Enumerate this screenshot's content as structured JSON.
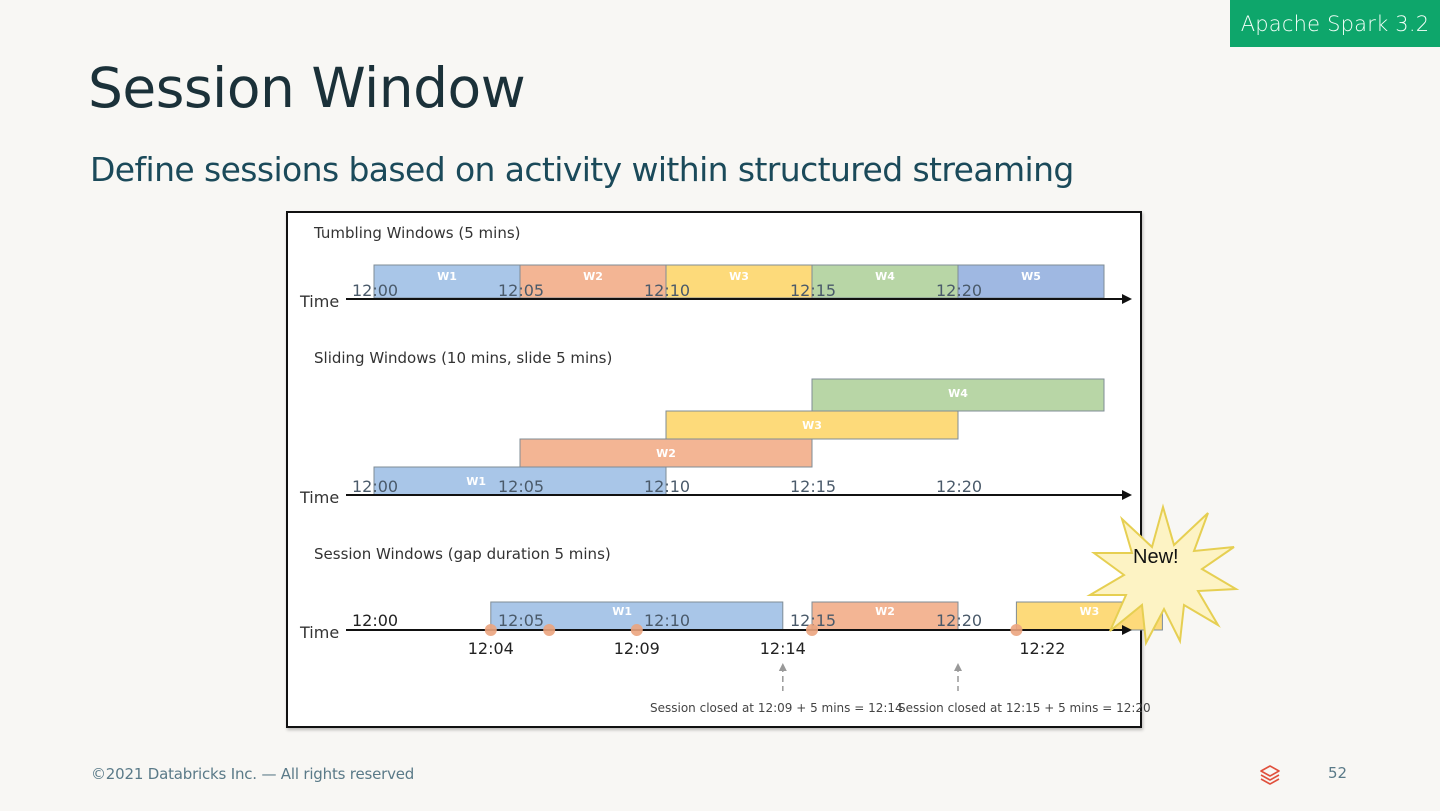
{
  "badge": {
    "label": "Apache Spark 3.2",
    "color": "#0ea66b"
  },
  "page": {
    "title": "Session Window",
    "subtitle": "Define sessions based on activity within structured streaming"
  },
  "diagram": {
    "colors": {
      "blue": "#a9c6e8",
      "orange": "#f3b594",
      "yellow": "#fdda7a",
      "green": "#b8d6a6",
      "blue2": "#9fb8e2",
      "event_dot": "#eba47e"
    },
    "axis_label": "Time",
    "tumbling": {
      "heading": "Tumbling Windows (5 mins)",
      "ticks": [
        "12:00",
        "12:05",
        "12:10",
        "12:15",
        "12:20"
      ],
      "windows": [
        {
          "label": "W1",
          "start_min": 0,
          "end_min": 5,
          "color": "blue"
        },
        {
          "label": "W2",
          "start_min": 5,
          "end_min": 10,
          "color": "orange"
        },
        {
          "label": "W3",
          "start_min": 10,
          "end_min": 15,
          "color": "yellow"
        },
        {
          "label": "W4",
          "start_min": 15,
          "end_min": 20,
          "color": "green"
        },
        {
          "label": "W5",
          "start_min": 20,
          "end_min": 25,
          "color": "blue2"
        }
      ]
    },
    "sliding": {
      "heading": "Sliding Windows (10 mins, slide 5 mins)",
      "ticks": [
        "12:00",
        "12:05",
        "12:10",
        "12:15",
        "12:20"
      ],
      "windows": [
        {
          "label": "W1",
          "start_min": 0,
          "end_min": 10,
          "color": "blue"
        },
        {
          "label": "W2",
          "start_min": 5,
          "end_min": 15,
          "color": "orange"
        },
        {
          "label": "W3",
          "start_min": 10,
          "end_min": 20,
          "color": "yellow"
        },
        {
          "label": "W4",
          "start_min": 15,
          "end_min": 25,
          "color": "green"
        }
      ]
    },
    "session": {
      "heading": "Session Windows (gap duration 5 mins)",
      "ticks": [
        "12:00",
        "12:05",
        "12:10",
        "12:15",
        "12:20"
      ],
      "event_labels": [
        "12:04",
        "12:09",
        "12:14",
        "12:22"
      ],
      "events_min": [
        4,
        6,
        9,
        15,
        22
      ],
      "windows": [
        {
          "label": "W1",
          "start_min": 4,
          "end_min": 14,
          "color": "blue"
        },
        {
          "label": "W2",
          "start_min": 15,
          "end_min": 20,
          "color": "orange"
        },
        {
          "label": "W3",
          "start_min": 22,
          "end_min": 27,
          "color": "yellow"
        }
      ],
      "annotations": [
        "Session closed at 12:09 + 5 mins = 12:14",
        "Session closed at 12:15 + 5 mins = 12:20"
      ]
    }
  },
  "callout": {
    "label": "New!"
  },
  "footer": {
    "copyright": "©2021 Databricks Inc. — All rights reserved",
    "page_number": "52"
  }
}
